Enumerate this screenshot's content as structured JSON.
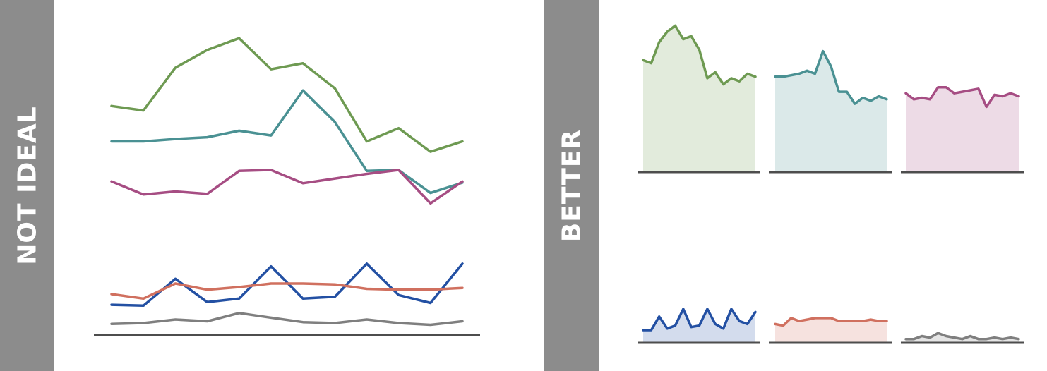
{
  "panels": {
    "left_label": "NOT IDEAL",
    "right_label": "BETTER"
  },
  "colors": {
    "green": "#6e9a52",
    "teal": "#4a9193",
    "magenta": "#a64d83",
    "blue": "#2350a3",
    "salmon": "#d0705f",
    "gray": "#7f7f7f",
    "axis": "#4d4d4d",
    "sidebar": "#8c8c8c"
  },
  "chart_data": [
    {
      "type": "line",
      "panel": "not-ideal",
      "title": "",
      "xlabel": "",
      "ylabel": "",
      "x": [
        1,
        2,
        3,
        4,
        5,
        6,
        7,
        8,
        9,
        10,
        11,
        12
      ],
      "ylim": [
        0,
        100
      ],
      "grid": false,
      "series": [
        {
          "color_key": "green",
          "values": [
            76,
            74.5,
            89,
            95,
            99,
            88.5,
            90.5,
            82,
            64,
            68.5,
            60.5,
            64
          ]
        },
        {
          "color_key": "teal",
          "values": [
            64,
            64,
            64.8,
            65.4,
            67.6,
            66,
            81.3,
            70.6,
            54,
            54.3,
            46.5,
            50
          ]
        },
        {
          "color_key": "magenta",
          "values": [
            50.4,
            46,
            47,
            46.2,
            54,
            54.3,
            49.8,
            51.4,
            53,
            54.3,
            43,
            50.4
          ]
        },
        {
          "color_key": "blue",
          "values": [
            8.6,
            8.3,
            17.4,
            9.5,
            10.7,
            21.6,
            10.7,
            11.3,
            22.5,
            11.9,
            9.2,
            22.5
          ]
        },
        {
          "color_key": "salmon",
          "values": [
            12.2,
            10.7,
            15.8,
            13.7,
            14.6,
            15.8,
            15.8,
            15.5,
            14,
            13.7,
            13.7,
            14.3
          ]
        },
        {
          "color_key": "gray",
          "values": [
            2.1,
            2.4,
            3.6,
            3,
            5.8,
            4.2,
            2.7,
            2.4,
            3.6,
            2.4,
            1.8,
            3
          ]
        }
      ]
    },
    {
      "type": "area",
      "panel": "better",
      "title": "",
      "xlabel": "",
      "ylabel": "",
      "x": [
        1,
        2,
        3,
        4,
        5,
        6,
        7,
        8,
        9,
        10,
        11,
        12,
        13,
        14,
        15
      ],
      "grid": false,
      "small_multiples": [
        {
          "color_key": "green",
          "row": 0,
          "col": 0,
          "ylim": [
            0,
            100
          ],
          "values": [
            74,
            72,
            86,
            93,
            97,
            88,
            90,
            81,
            62,
            66,
            58,
            62,
            60,
            65,
            63
          ]
        },
        {
          "color_key": "teal",
          "row": 0,
          "col": 1,
          "ylim": [
            0,
            100
          ],
          "values": [
            63,
            63,
            64,
            65,
            67,
            65,
            80,
            70,
            53,
            53,
            45,
            49,
            47,
            50,
            48
          ]
        },
        {
          "color_key": "magenta",
          "row": 0,
          "col": 2,
          "ylim": [
            0,
            100
          ],
          "values": [
            52,
            48,
            49,
            48,
            56,
            56,
            52,
            53,
            54,
            55,
            43,
            51,
            50,
            52,
            50
          ]
        },
        {
          "color_key": "blue",
          "row": 1,
          "col": 0,
          "ylim": [
            0,
            100
          ],
          "values": [
            8,
            8,
            17,
            9,
            11,
            22,
            10,
            11,
            22,
            12,
            9,
            22,
            14,
            12,
            20
          ]
        },
        {
          "color_key": "salmon",
          "row": 1,
          "col": 1,
          "ylim": [
            0,
            100
          ],
          "values": [
            12,
            11,
            16,
            14,
            15,
            16,
            16,
            16,
            14,
            14,
            14,
            14,
            15,
            14,
            14
          ]
        },
        {
          "color_key": "gray",
          "row": 1,
          "col": 2,
          "ylim": [
            0,
            100
          ],
          "values": [
            2,
            2,
            4,
            3,
            6,
            4,
            3,
            2,
            4,
            2,
            2,
            3,
            2,
            3,
            2
          ]
        }
      ]
    }
  ]
}
